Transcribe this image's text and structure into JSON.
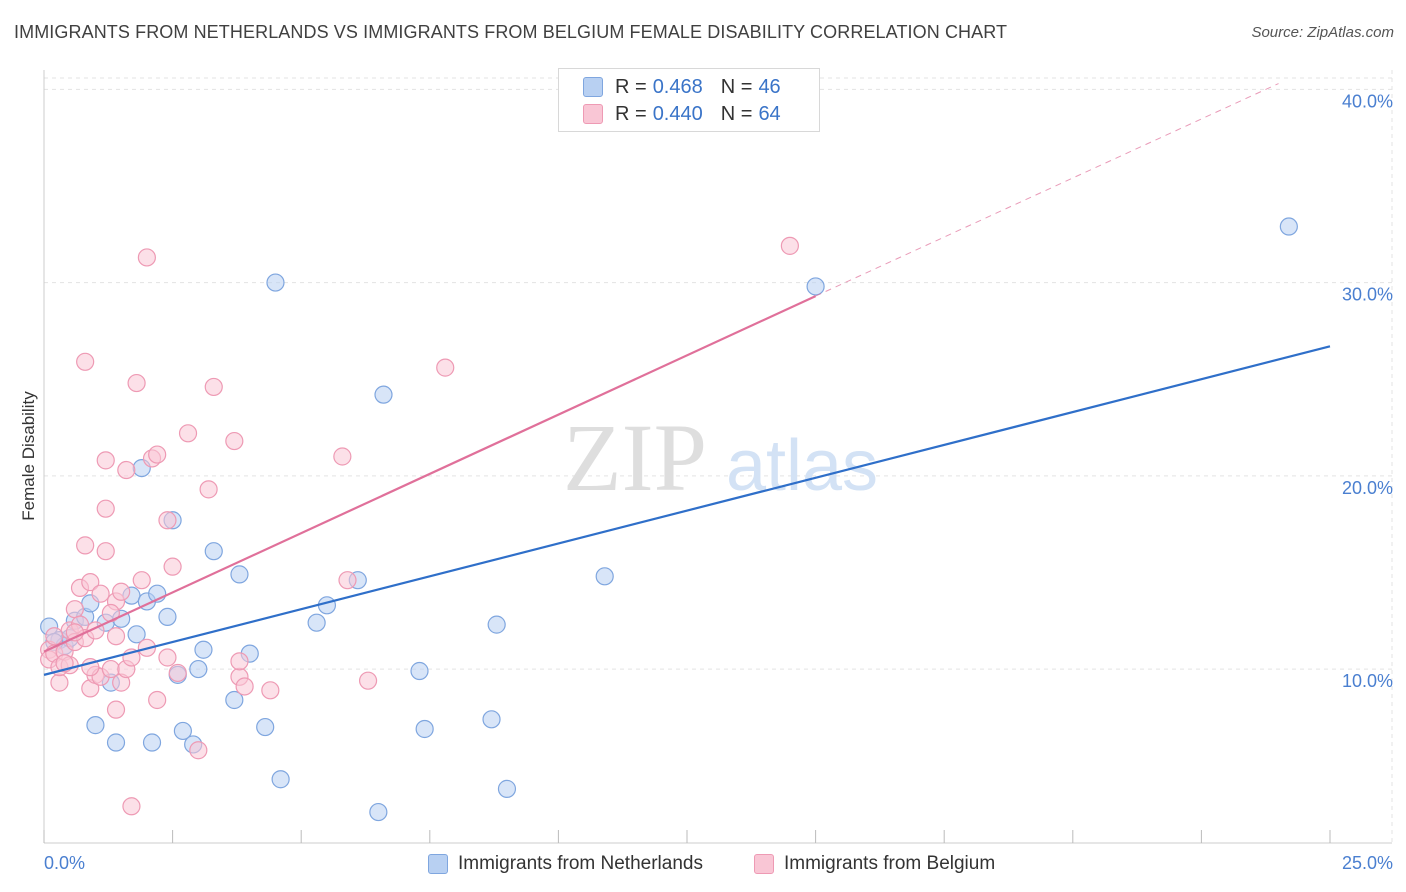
{
  "header": {
    "title": "IMMIGRANTS FROM NETHERLANDS VS IMMIGRANTS FROM BELGIUM FEMALE DISABILITY CORRELATION CHART",
    "source": "Source: ZipAtlas.com"
  },
  "watermark": {
    "zip": "ZIP",
    "atlas": "atlas"
  },
  "legend": {
    "r_label": "R =",
    "n_label": "N =",
    "netherlands": {
      "r": "0.468",
      "n": "46"
    },
    "belgium": {
      "r": "0.440",
      "n": "64"
    }
  },
  "colors": {
    "netherlands_fill": "#b8d0f2",
    "netherlands_stroke": "#7fa6df",
    "netherlands_line": "#2f6fc9",
    "belgium_fill": "#f9c6d5",
    "belgium_stroke": "#ee9ab4",
    "belgium_line": "#e0709a",
    "tick_text": "#4a7fd0",
    "grid": "#e3e3e3"
  },
  "chart_data": {
    "type": "scatter",
    "ylabel": "Female Disability",
    "xlim": [
      0,
      25
    ],
    "ylim": [
      1,
      41
    ],
    "y_ticks": [
      10,
      20,
      30,
      40
    ],
    "y_tick_labels": [
      "10.0%",
      "20.0%",
      "30.0%",
      "40.0%"
    ],
    "x_tick_labels": {
      "min": "0.0%",
      "max": "25.0%"
    },
    "grid": true,
    "legend_position": "top-center",
    "series": [
      {
        "name": "Immigrants from Netherlands",
        "r": 0.468,
        "n": 46,
        "trend": {
          "x0": 0,
          "y0": 9.7,
          "x1": 25,
          "y1": 26.7,
          "dashed_extension_to": null
        },
        "points": [
          [
            0.1,
            12.2
          ],
          [
            0.3,
            11.5
          ],
          [
            0.4,
            11.2
          ],
          [
            0.5,
            11.6
          ],
          [
            0.6,
            12.5
          ],
          [
            0.8,
            12.7
          ],
          [
            0.9,
            13.4
          ],
          [
            1.0,
            7.1
          ],
          [
            1.2,
            12.4
          ],
          [
            1.3,
            9.3
          ],
          [
            1.4,
            6.2
          ],
          [
            1.5,
            12.6
          ],
          [
            1.7,
            13.8
          ],
          [
            1.8,
            11.8
          ],
          [
            1.9,
            20.4
          ],
          [
            2.0,
            13.5
          ],
          [
            2.1,
            6.2
          ],
          [
            2.2,
            13.9
          ],
          [
            2.4,
            12.7
          ],
          [
            2.5,
            17.7
          ],
          [
            2.6,
            9.7
          ],
          [
            2.7,
            6.8
          ],
          [
            2.9,
            6.1
          ],
          [
            3.0,
            10.0
          ],
          [
            3.1,
            11.0
          ],
          [
            3.3,
            16.1
          ],
          [
            3.7,
            8.4
          ],
          [
            3.8,
            14.9
          ],
          [
            4.0,
            10.8
          ],
          [
            4.3,
            7.0
          ],
          [
            4.5,
            30.0
          ],
          [
            4.6,
            4.3
          ],
          [
            5.3,
            12.4
          ],
          [
            5.5,
            13.3
          ],
          [
            6.1,
            14.6
          ],
          [
            6.5,
            2.6
          ],
          [
            6.6,
            24.2
          ],
          [
            7.3,
            9.9
          ],
          [
            7.4,
            6.9
          ],
          [
            8.7,
            7.4
          ],
          [
            8.8,
            12.3
          ],
          [
            9.0,
            3.8
          ],
          [
            10.9,
            14.8
          ],
          [
            15.0,
            29.8
          ],
          [
            24.2,
            32.9
          ],
          [
            0.2,
            11.4
          ]
        ]
      },
      {
        "name": "Immigrants from Belgium",
        "r": 0.44,
        "n": 64,
        "trend": {
          "x0": 0,
          "y0": 10.9,
          "x1": 15.0,
          "y1": 29.3,
          "dashed_x1": 24.0,
          "dashed_y1": 40.3
        },
        "points": [
          [
            0.1,
            11.0
          ],
          [
            0.1,
            10.5
          ],
          [
            0.2,
            10.8
          ],
          [
            0.3,
            9.3
          ],
          [
            0.3,
            10.1
          ],
          [
            0.4,
            10.9
          ],
          [
            0.5,
            10.2
          ],
          [
            0.5,
            12.0
          ],
          [
            0.6,
            13.1
          ],
          [
            0.6,
            11.4
          ],
          [
            0.7,
            12.3
          ],
          [
            0.7,
            14.2
          ],
          [
            0.8,
            11.6
          ],
          [
            0.8,
            25.9
          ],
          [
            0.8,
            16.4
          ],
          [
            0.9,
            9.0
          ],
          [
            0.9,
            14.5
          ],
          [
            1.0,
            9.7
          ],
          [
            1.0,
            12.0
          ],
          [
            1.1,
            9.6
          ],
          [
            1.1,
            13.9
          ],
          [
            1.2,
            16.1
          ],
          [
            1.2,
            18.3
          ],
          [
            1.2,
            20.8
          ],
          [
            1.3,
            10.0
          ],
          [
            1.4,
            13.5
          ],
          [
            1.4,
            11.7
          ],
          [
            1.4,
            7.9
          ],
          [
            1.5,
            9.3
          ],
          [
            1.6,
            20.3
          ],
          [
            1.6,
            10.0
          ],
          [
            1.7,
            10.6
          ],
          [
            1.7,
            2.9
          ],
          [
            1.8,
            24.8
          ],
          [
            1.9,
            14.6
          ],
          [
            2.0,
            31.3
          ],
          [
            2.1,
            20.9
          ],
          [
            2.2,
            8.4
          ],
          [
            2.2,
            21.1
          ],
          [
            2.4,
            17.7
          ],
          [
            2.4,
            10.6
          ],
          [
            2.5,
            15.3
          ],
          [
            2.6,
            9.8
          ],
          [
            2.8,
            22.2
          ],
          [
            3.0,
            5.8
          ],
          [
            3.2,
            19.3
          ],
          [
            3.3,
            24.6
          ],
          [
            3.7,
            21.8
          ],
          [
            3.8,
            9.6
          ],
          [
            3.8,
            10.4
          ],
          [
            3.9,
            9.1
          ],
          [
            4.4,
            8.9
          ],
          [
            5.8,
            21.0
          ],
          [
            5.9,
            14.6
          ],
          [
            6.3,
            9.4
          ],
          [
            7.8,
            25.6
          ],
          [
            14.5,
            31.9
          ],
          [
            0.2,
            11.7
          ],
          [
            0.4,
            10.3
          ],
          [
            0.6,
            11.9
          ],
          [
            0.9,
            10.1
          ],
          [
            1.3,
            12.9
          ],
          [
            1.5,
            14.0
          ],
          [
            2.0,
            11.1
          ]
        ]
      }
    ]
  },
  "bottom_legend": {
    "netherlands": "Immigrants from Netherlands",
    "belgium": "Immigrants from Belgium"
  }
}
